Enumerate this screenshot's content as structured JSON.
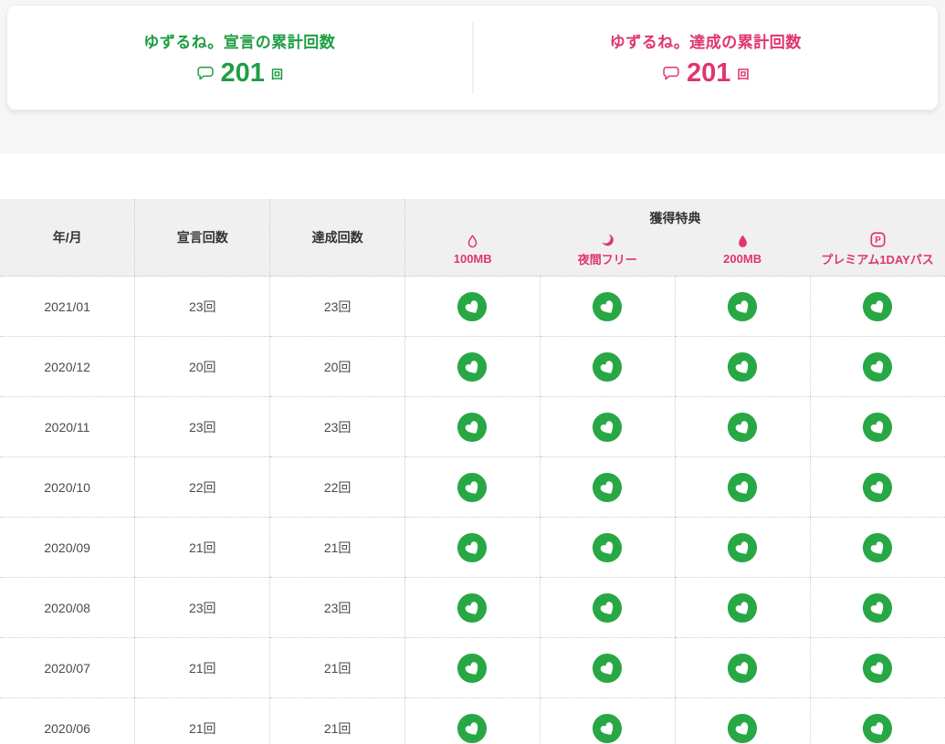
{
  "colors": {
    "green_text": "#1f9d44",
    "green_circle": "#28a745",
    "pink": "#e0356f",
    "header_bg": "#f0f0f1"
  },
  "summary": {
    "declared": {
      "title": "ゆずるね。宣言の累計回数",
      "icon": "speech-bubble-icon",
      "count": "201",
      "unit": "回"
    },
    "achieved": {
      "title": "ゆずるね。達成の累計回数",
      "icon": "speech-bubble-icon",
      "count": "201",
      "unit": "回"
    }
  },
  "table": {
    "headers": {
      "month": "年/月",
      "declared": "宣言回数",
      "achieved": "達成回数",
      "rewards_group": "獲得特典"
    },
    "reward_columns": [
      {
        "label": "100MB",
        "icon": "droplet-outline-icon"
      },
      {
        "label": "夜間フリー",
        "icon": "moon-icon"
      },
      {
        "label": "200MB",
        "icon": "droplet-filled-icon"
      },
      {
        "label": "プレミアム1DAYパス",
        "icon": "premium-pass-icon"
      }
    ],
    "achieved_icon": "leaf-heart-badge-icon",
    "rows": [
      {
        "month": "2021/01",
        "declared": "23回",
        "achieved": "23回",
        "rewards": [
          true,
          true,
          true,
          true
        ]
      },
      {
        "month": "2020/12",
        "declared": "20回",
        "achieved": "20回",
        "rewards": [
          true,
          true,
          true,
          true
        ]
      },
      {
        "month": "2020/11",
        "declared": "23回",
        "achieved": "23回",
        "rewards": [
          true,
          true,
          true,
          true
        ]
      },
      {
        "month": "2020/10",
        "declared": "22回",
        "achieved": "22回",
        "rewards": [
          true,
          true,
          true,
          true
        ]
      },
      {
        "month": "2020/09",
        "declared": "21回",
        "achieved": "21回",
        "rewards": [
          true,
          true,
          true,
          true
        ]
      },
      {
        "month": "2020/08",
        "declared": "23回",
        "achieved": "23回",
        "rewards": [
          true,
          true,
          true,
          true
        ]
      },
      {
        "month": "2020/07",
        "declared": "21回",
        "achieved": "21回",
        "rewards": [
          true,
          true,
          true,
          true
        ]
      },
      {
        "month": "2020/06",
        "declared": "21回",
        "achieved": "21回",
        "rewards": [
          true,
          true,
          true,
          true
        ]
      }
    ]
  }
}
